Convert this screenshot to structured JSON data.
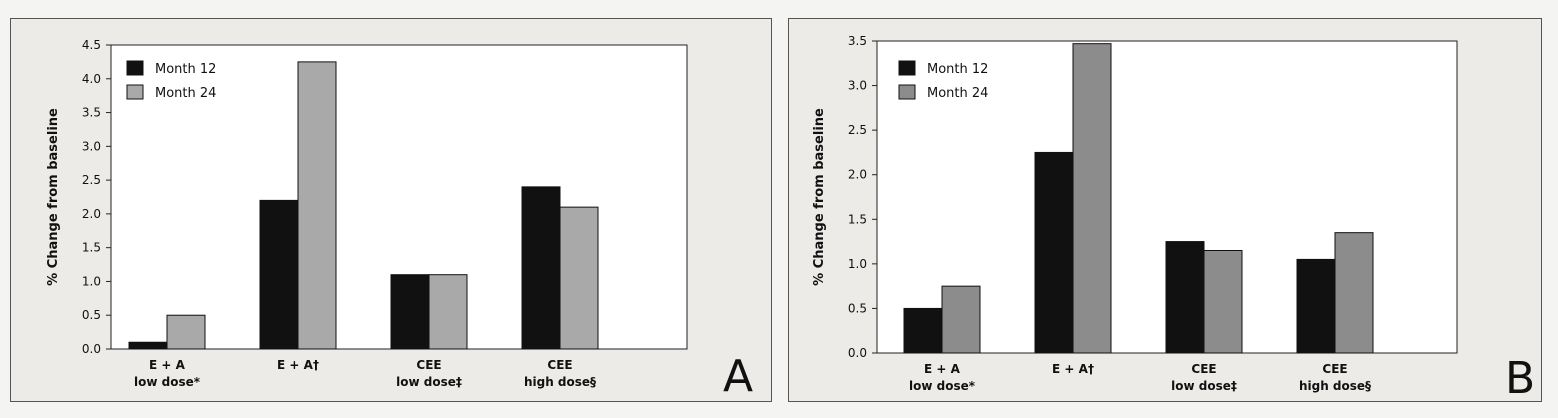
{
  "chart_data": [
    {
      "type": "bar",
      "panel_letter": "A",
      "ylabel": "% Change from baseline",
      "ylim": [
        0,
        4.5
      ],
      "yticks": [
        "0.0",
        "0.5",
        "1.0",
        "1.5",
        "2.0",
        "2.5",
        "3.0",
        "3.5",
        "4.0",
        "4.5"
      ],
      "categories": [
        {
          "line1": "E + A",
          "line2": "low dose*"
        },
        {
          "line1": "E + A†",
          "line2": ""
        },
        {
          "line1": "CEE",
          "line2": "low dose‡"
        },
        {
          "line1": "CEE",
          "line2": "high dose§"
        }
      ],
      "series": [
        {
          "name": "Month 12",
          "color": "#111111",
          "values": [
            0.1,
            2.2,
            1.1,
            2.4
          ]
        },
        {
          "name": "Month 24",
          "color": "#a9a9a9",
          "values": [
            0.5,
            4.25,
            1.1,
            2.1
          ]
        }
      ],
      "legend": "top-left",
      "grid": false
    },
    {
      "type": "bar",
      "panel_letter": "B",
      "ylabel": "% Change from baseline",
      "ylim": [
        0,
        3.5
      ],
      "yticks": [
        "0.0",
        "0.5",
        "1.0",
        "1.5",
        "2.0",
        "2.5",
        "3.0",
        "3.5"
      ],
      "categories": [
        {
          "line1": "E + A",
          "line2": "low dose*"
        },
        {
          "line1": "E + A†",
          "line2": ""
        },
        {
          "line1": "CEE",
          "line2": "low dose‡"
        },
        {
          "line1": "CEE",
          "line2": "high dose§"
        }
      ],
      "series": [
        {
          "name": "Month 12",
          "color": "#111111",
          "values": [
            0.5,
            2.25,
            1.25,
            1.05
          ]
        },
        {
          "name": "Month 24",
          "color": "#8c8c8c",
          "values": [
            0.75,
            3.47,
            1.15,
            1.35
          ]
        }
      ],
      "legend": "top-left",
      "grid": false
    }
  ]
}
